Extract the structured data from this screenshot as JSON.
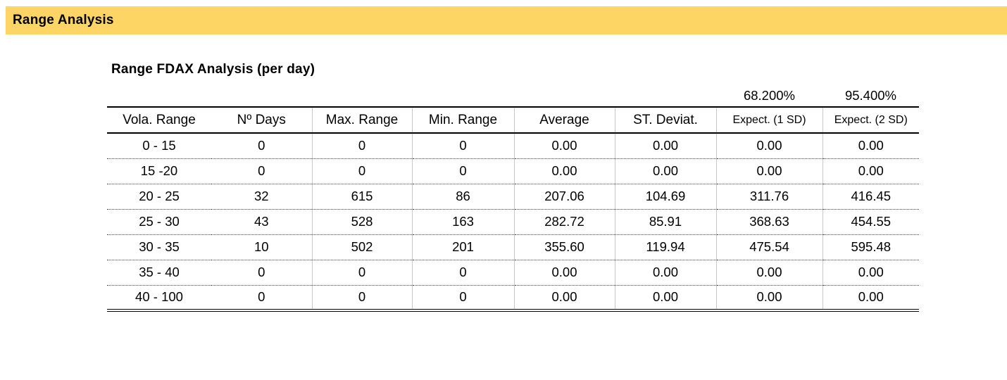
{
  "banner": {
    "title": "Range Analysis",
    "background_color": "#FCD564"
  },
  "main": {
    "title": "Range FDAX Analysis (per day)",
    "confidence_levels": {
      "one_sd": "68.200%",
      "two_sd": "95.400%"
    }
  },
  "table": {
    "headers": [
      "Vola. Range",
      "Nº Days",
      "Max. Range",
      "Min. Range",
      "Average",
      "ST. Deviat.",
      "Expect. (1 SD)",
      "Expect. (2 SD)"
    ],
    "rows": [
      [
        "0 - 15",
        "0",
        "0",
        "0",
        "0.00",
        "0.00",
        "0.00",
        "0.00"
      ],
      [
        "15 -20",
        "0",
        "0",
        "0",
        "0.00",
        "0.00",
        "0.00",
        "0.00"
      ],
      [
        "20 - 25",
        "32",
        "615",
        "86",
        "207.06",
        "104.69",
        "311.76",
        "416.45"
      ],
      [
        "25 - 30",
        "43",
        "528",
        "163",
        "282.72",
        "85.91",
        "368.63",
        "454.55"
      ],
      [
        "30 - 35",
        "10",
        "502",
        "201",
        "355.60",
        "119.94",
        "475.54",
        "595.48"
      ],
      [
        "35 - 40",
        "0",
        "0",
        "0",
        "0.00",
        "0.00",
        "0.00",
        "0.00"
      ],
      [
        "40 - 100",
        "0",
        "0",
        "0",
        "0.00",
        "0.00",
        "0.00",
        "0.00"
      ]
    ]
  }
}
